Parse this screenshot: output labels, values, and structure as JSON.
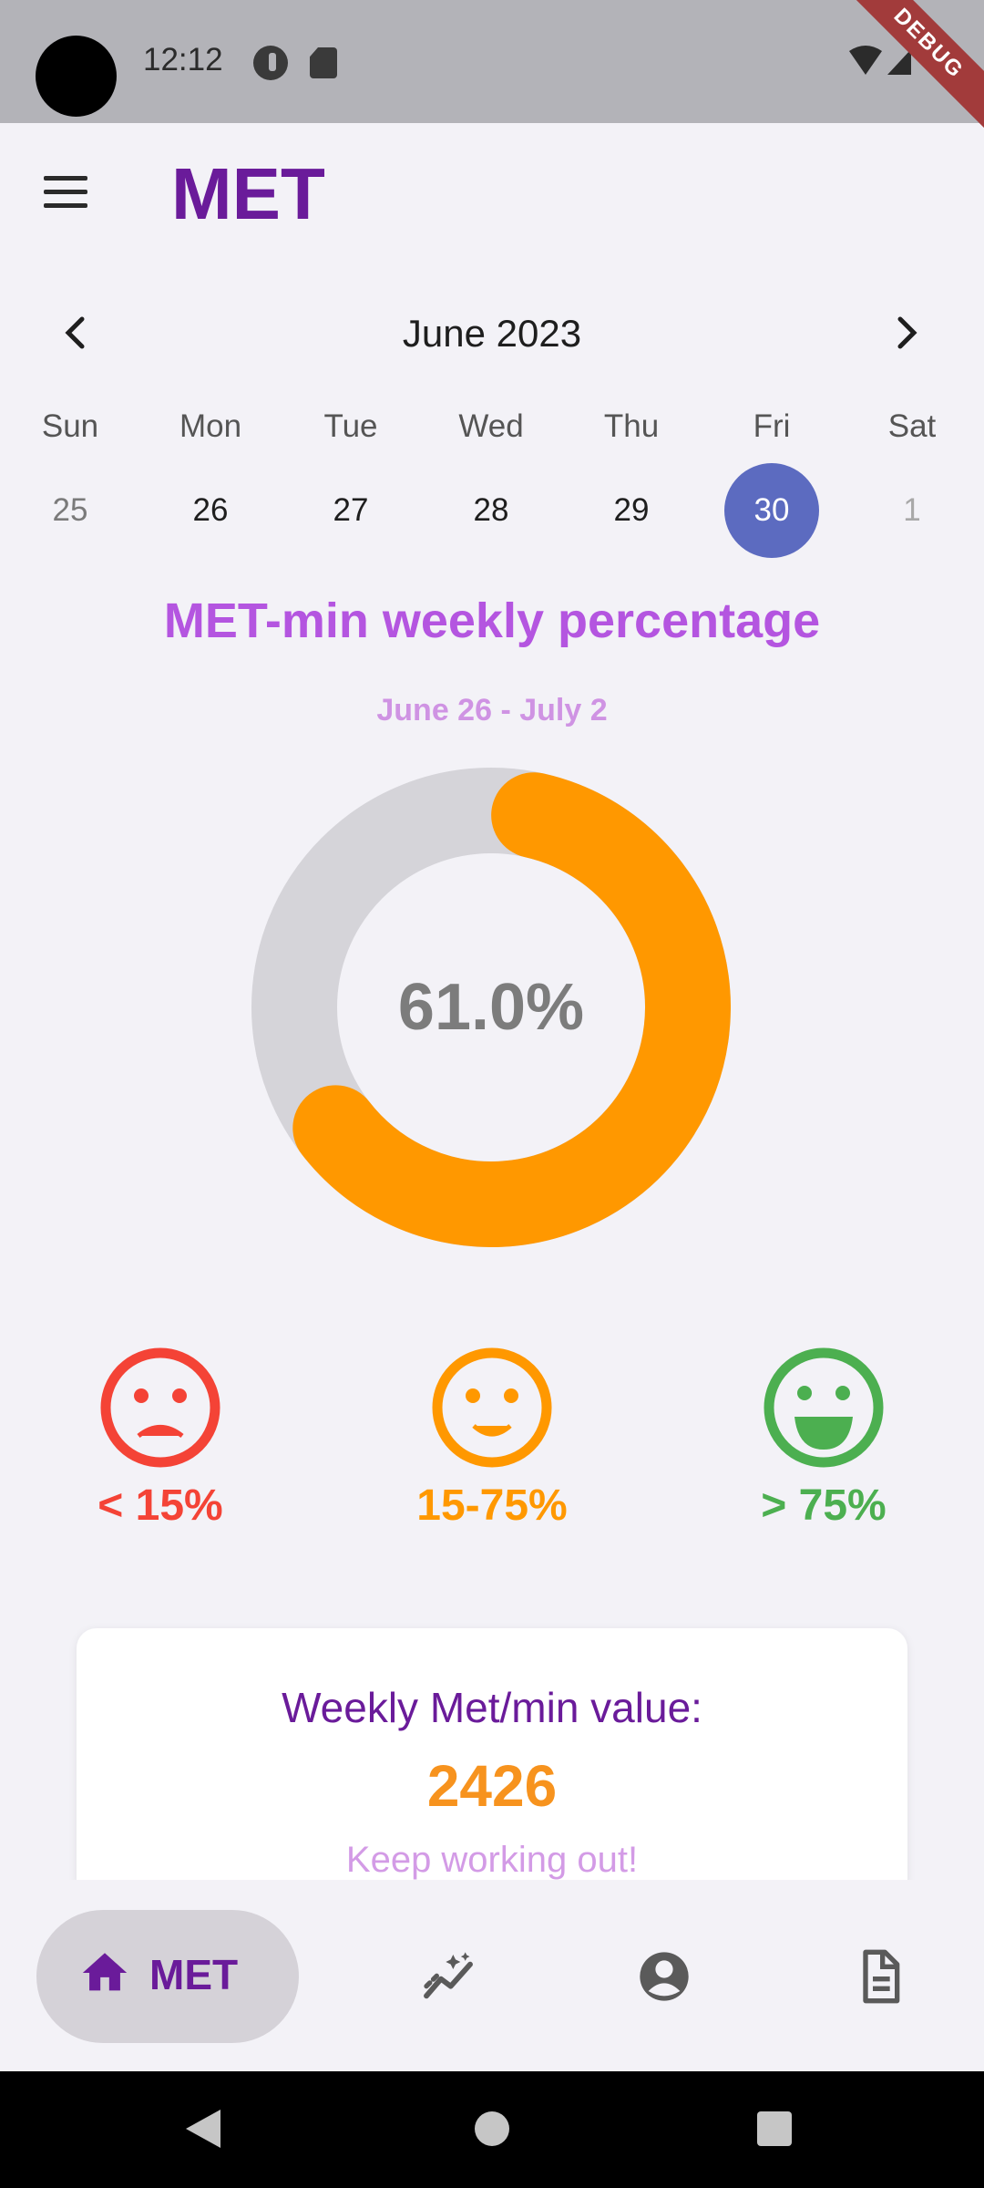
{
  "status_bar": {
    "time": "12:12",
    "debug_label": "DEBUG"
  },
  "app_bar": {
    "title": "MET"
  },
  "calendar": {
    "month": "June 2023",
    "weekdays": [
      "Sun",
      "Mon",
      "Tue",
      "Wed",
      "Thu",
      "Fri",
      "Sat"
    ],
    "dates": [
      "25",
      "26",
      "27",
      "28",
      "29",
      "30",
      "1"
    ],
    "selected_date": "30"
  },
  "chart": {
    "title": "MET-min weekly percentage",
    "range": "June 26 - July 2",
    "center_label": "61.0%",
    "progress_color": "#ff9800",
    "track_color": "#d5d4d9"
  },
  "chart_data": {
    "type": "pie",
    "title": "MET-min weekly percentage",
    "values": [
      61.0,
      39.0
    ],
    "categories": [
      "",
      ""
    ],
    "colors": [
      "#ff9800",
      "#d5d4d9"
    ]
  },
  "legend": [
    {
      "label": "< 15%",
      "color": "#f44336",
      "icon": "sad-face-icon"
    },
    {
      "label": "15-75%",
      "color": "#ff9800",
      "icon": "neutral-face-icon"
    },
    {
      "label": "> 75%",
      "color": "#4caf50",
      "icon": "happy-face-icon"
    }
  ],
  "card": {
    "title": "Weekly Met/min value:",
    "value": "2426",
    "message": "Keep working out!"
  },
  "bottom_nav": {
    "active_label": "MET",
    "items": [
      "home-icon",
      "sparkline-icon",
      "account-icon",
      "document-icon"
    ]
  }
}
